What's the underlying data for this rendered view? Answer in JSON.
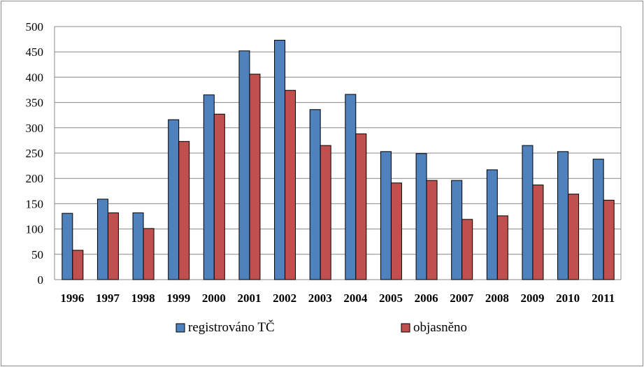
{
  "chart_data": {
    "type": "bar",
    "categories": [
      "1996",
      "1997",
      "1998",
      "1999",
      "2000",
      "2001",
      "2002",
      "2003",
      "2004",
      "2005",
      "2006",
      "2007",
      "2008",
      "2009",
      "2010",
      "2011"
    ],
    "series": [
      {
        "name": "registrováno TČ",
        "color": "#4f81bd",
        "values": [
          131,
          159,
          132,
          316,
          365,
          452,
          473,
          336,
          366,
          253,
          249,
          196,
          217,
          265,
          253,
          238
        ]
      },
      {
        "name": "objasněno",
        "color": "#c0504d",
        "values": [
          58,
          132,
          101,
          273,
          327,
          406,
          374,
          265,
          288,
          191,
          196,
          119,
          126,
          187,
          169,
          157
        ]
      }
    ],
    "ylim": [
      0,
      500
    ],
    "yticks": [
      0,
      50,
      100,
      150,
      200,
      250,
      300,
      350,
      400,
      450,
      500
    ],
    "grid": true,
    "legend_position": "bottom",
    "title": "",
    "xlabel": "",
    "ylabel": ""
  }
}
